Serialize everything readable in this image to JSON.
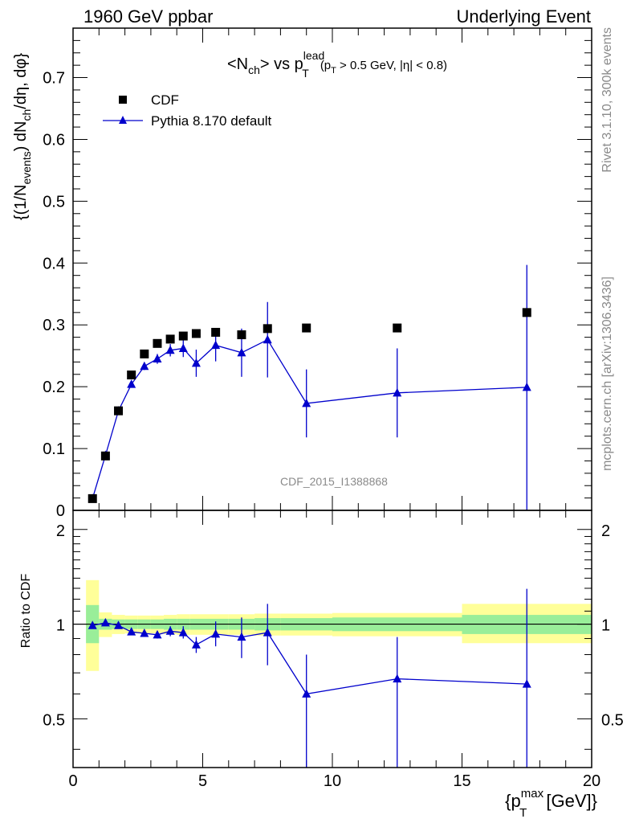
{
  "header": {
    "left": "1960 GeV ppbar",
    "right": "Underlying Event"
  },
  "side_labels": {
    "rivet": "Rivet 3.1.10,  300k events",
    "mcplots": "mcplots.cern.ch [arXiv:1306.3436]"
  },
  "colors": {
    "pythia": "#0000cc",
    "cdf": "#000000",
    "band_inner": "#99ee99",
    "band_outer": "#ffff99"
  },
  "chart_data": [
    {
      "type": "scatter",
      "title": {
        "main": "<N",
        "main_sub": "ch",
        "vs": "> vs p",
        "vs_sup": "lead",
        "vs_sub": "T",
        "cut_open": "(p",
        "cut_sub": "T",
        "cut_rest": " > 0.5 GeV, |η| < 0.8)"
      },
      "ylabel": {
        "a": "{(1/N",
        "a_sub": "events",
        "b": ") dN",
        "b_sub": "ch",
        "c": "/dη, dφ}"
      },
      "watermark": "CDF_2015_I1388868",
      "xlim": [
        0,
        20
      ],
      "ylim": [
        0,
        0.78
      ],
      "y_ticks": [
        0,
        0.1,
        0.2,
        0.3,
        0.4,
        0.5,
        0.6,
        0.7
      ],
      "y_tick_labels": [
        "0",
        "0.1",
        "0.2",
        "0.3",
        "0.4",
        "0.5",
        "0.6",
        "0.7"
      ],
      "legend_position": "top-left",
      "series": [
        {
          "name": "CDF",
          "marker": "square",
          "x": [
            0.75,
            1.25,
            1.75,
            2.25,
            2.75,
            3.25,
            3.75,
            4.25,
            4.75,
            5.5,
            6.5,
            7.5,
            9.0,
            12.5,
            17.5
          ],
          "y": [
            0.019,
            0.088,
            0.161,
            0.219,
            0.253,
            0.27,
            0.277,
            0.282,
            0.286,
            0.288,
            0.284,
            0.294,
            0.295,
            0.295,
            0.32
          ]
        },
        {
          "name": "Pythia 8.170 default",
          "marker": "triangle",
          "x": [
            0.75,
            1.25,
            1.75,
            2.25,
            2.75,
            3.25,
            3.75,
            4.25,
            4.75,
            5.5,
            6.5,
            7.5,
            9.0,
            12.5,
            17.5
          ],
          "y": [
            0.019,
            0.089,
            0.161,
            0.204,
            0.233,
            0.245,
            0.259,
            0.262,
            0.238,
            0.267,
            0.255,
            0.276,
            0.173,
            0.19,
            0.199
          ],
          "y_err_low": [
            0.001,
            0.002,
            0.003,
            0.004,
            0.006,
            0.008,
            0.01,
            0.014,
            0.022,
            0.026,
            0.039,
            0.061,
            0.055,
            0.072,
            0.2
          ],
          "y_err_high": [
            0.001,
            0.002,
            0.003,
            0.004,
            0.006,
            0.008,
            0.01,
            0.014,
            0.022,
            0.026,
            0.039,
            0.061,
            0.055,
            0.072,
            0.198
          ]
        }
      ]
    },
    {
      "type": "scatter",
      "ylabel": "Ratio to CDF",
      "xlabel": {
        "open": "{p",
        "sup": "max",
        "sub": "T",
        "close": " [GeV]}"
      },
      "xlim": [
        0,
        20
      ],
      "ylim": [
        0.35,
        2.3
      ],
      "y_log": true,
      "x_ticks": [
        0,
        5,
        10,
        15,
        20
      ],
      "x_tick_labels": [
        "0",
        "5",
        "10",
        "15",
        "20"
      ],
      "y_ticks": [
        0.5,
        1,
        2
      ],
      "y_tick_labels": [
        "0.5",
        "1",
        "2"
      ],
      "reference_line": 1,
      "bands": {
        "x_low": [
          0.5,
          1.0,
          1.5,
          2.0,
          2.5,
          3.0,
          3.5,
          4.0,
          4.5,
          5.0,
          6.0,
          7.0,
          8.0,
          10.0,
          15.0
        ],
        "x_high": [
          1.0,
          1.5,
          2.0,
          2.5,
          3.0,
          3.5,
          4.0,
          4.5,
          5.0,
          6.0,
          7.0,
          8.0,
          10.0,
          15.0,
          20.0
        ],
        "inner_low": [
          0.87,
          0.96,
          0.965,
          0.965,
          0.965,
          0.965,
          0.96,
          0.96,
          0.96,
          0.96,
          0.96,
          0.955,
          0.955,
          0.95,
          0.93
        ],
        "inner_high": [
          1.15,
          1.04,
          1.035,
          1.035,
          1.035,
          1.035,
          1.04,
          1.04,
          1.04,
          1.04,
          1.04,
          1.045,
          1.045,
          1.05,
          1.07
        ],
        "outer_low": [
          0.71,
          0.91,
          0.93,
          0.935,
          0.935,
          0.935,
          0.93,
          0.925,
          0.925,
          0.925,
          0.925,
          0.92,
          0.92,
          0.915,
          0.87
        ],
        "outer_high": [
          1.38,
          1.09,
          1.07,
          1.065,
          1.065,
          1.065,
          1.07,
          1.075,
          1.075,
          1.075,
          1.075,
          1.08,
          1.08,
          1.085,
          1.16
        ]
      },
      "series": [
        {
          "name": "Pythia 8.170 default",
          "marker": "triangle",
          "x": [
            0.75,
            1.25,
            1.75,
            2.25,
            2.75,
            3.25,
            3.75,
            4.25,
            4.75,
            5.5,
            6.5,
            7.5,
            9.0,
            12.5,
            17.5
          ],
          "y": [
            0.99,
            1.01,
            0.99,
            0.945,
            0.935,
            0.925,
            0.95,
            0.94,
            0.86,
            0.93,
            0.91,
            0.94,
            0.6,
            0.67,
            0.645
          ],
          "y_err_low": [
            0.01,
            0.01,
            0.01,
            0.015,
            0.02,
            0.025,
            0.035,
            0.04,
            0.05,
            0.08,
            0.13,
            0.2,
            0.3,
            0.34,
            0.6
          ],
          "y_err_high": [
            0.01,
            0.01,
            0.01,
            0.015,
            0.02,
            0.025,
            0.035,
            0.045,
            0.05,
            0.09,
            0.14,
            0.22,
            0.2,
            0.24,
            0.65
          ]
        }
      ]
    }
  ]
}
